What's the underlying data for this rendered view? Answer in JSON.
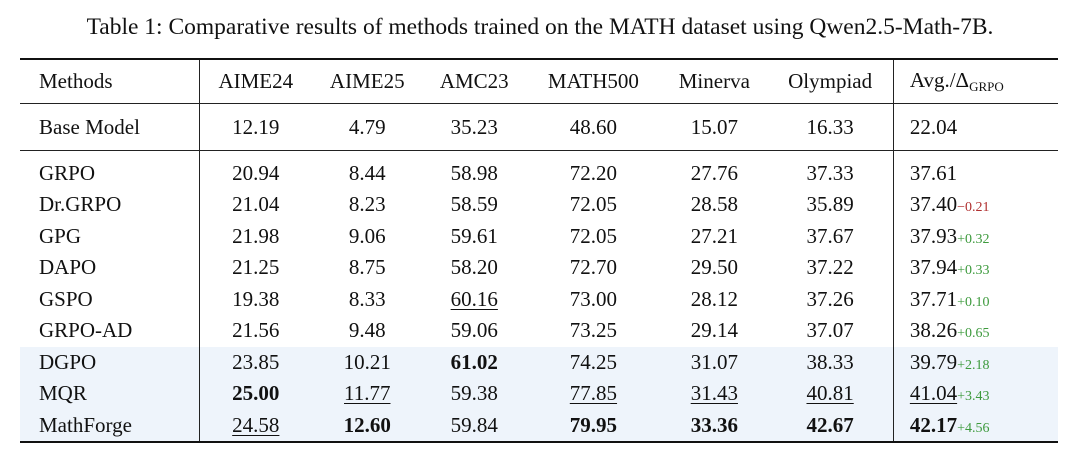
{
  "caption": "Table 1: Comparative results of methods trained on the MATH dataset using Qwen2.5-Math-7B.",
  "header": {
    "methods": "Methods",
    "aime24": "AIME24",
    "aime25": "AIME25",
    "amc23": "AMC23",
    "math500": "MATH500",
    "minerva": "Minerva",
    "olympiad": "Olympiad",
    "avg_main": "Avg./Δ",
    "avg_sub": "GRPO"
  },
  "base": {
    "method": "Base Model",
    "aime24": "12.19",
    "aime25": "4.79",
    "amc23": "35.23",
    "math500": "48.60",
    "minerva": "15.07",
    "olympiad": "16.33",
    "avg": "22.04"
  },
  "rows": [
    {
      "method": "GRPO",
      "aime24": "20.94",
      "aime25": "8.44",
      "amc23": "58.98",
      "math500": "72.20",
      "minerva": "27.76",
      "olympiad": "37.33",
      "avg": "37.61",
      "delta": ""
    },
    {
      "method": "Dr.GRPO",
      "aime24": "21.04",
      "aime25": "8.23",
      "amc23": "58.59",
      "math500": "72.05",
      "minerva": "28.58",
      "olympiad": "35.89",
      "avg": "37.40",
      "delta": "−0.21"
    },
    {
      "method": "GPG",
      "aime24": "21.98",
      "aime25": "9.06",
      "amc23": "59.61",
      "math500": "72.05",
      "minerva": "27.21",
      "olympiad": "37.67",
      "avg": "37.93",
      "delta": "+0.32"
    },
    {
      "method": "DAPO",
      "aime24": "21.25",
      "aime25": "8.75",
      "amc23": "58.20",
      "math500": "72.70",
      "minerva": "29.50",
      "olympiad": "37.22",
      "avg": "37.94",
      "delta": "+0.33"
    },
    {
      "method": "GSPO",
      "aime24": "19.38",
      "aime25": "8.33",
      "amc23": "60.16",
      "math500": "73.00",
      "minerva": "28.12",
      "olympiad": "37.26",
      "avg": "37.71",
      "delta": "+0.10"
    },
    {
      "method": "GRPO-AD",
      "aime24": "21.56",
      "aime25": "9.48",
      "amc23": "59.06",
      "math500": "73.25",
      "minerva": "29.14",
      "olympiad": "37.07",
      "avg": "38.26",
      "delta": "+0.65"
    },
    {
      "method": "DGPO",
      "aime24": "23.85",
      "aime25": "10.21",
      "amc23": "61.02",
      "math500": "74.25",
      "minerva": "31.07",
      "olympiad": "38.33",
      "avg": "39.79",
      "delta": "+2.18"
    },
    {
      "method": "MQR",
      "aime24": "25.00",
      "aime25": "11.77",
      "amc23": "59.38",
      "math500": "77.85",
      "minerva": "31.43",
      "olympiad": "40.81",
      "avg": "41.04",
      "delta": "+3.43"
    },
    {
      "method": "MathForge",
      "aime24": "24.58",
      "aime25": "12.60",
      "amc23": "59.84",
      "math500": "79.95",
      "minerva": "33.36",
      "olympiad": "42.67",
      "avg": "42.17",
      "delta": "+4.56"
    }
  ],
  "colors": {
    "delta_positive": "#3d9a3d",
    "delta_negative": "#b03030",
    "highlight_row_bg": "#eef4fb",
    "rule": "#111111"
  }
}
